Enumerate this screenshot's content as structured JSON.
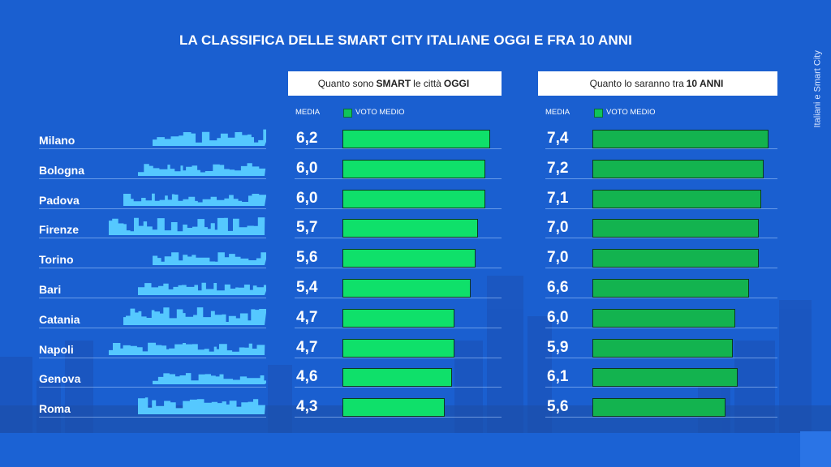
{
  "title": "LA CLASSIFICA DELLE SMART CITY ITALIANE OGGI E FRA 10 ANNI",
  "side_label": "Italiani e Smart City",
  "panels": {
    "today": {
      "pre": "Quanto sono",
      "bold1": "SMART",
      "mid": "le città",
      "bold2": "OGGI"
    },
    "future": {
      "pre": "Quanto lo saranno tra",
      "bold1": "10 ANNI"
    }
  },
  "column_labels": {
    "media": "MEDIA",
    "voto": "VOTO MEDIO"
  },
  "colors": {
    "background": "#1a5fd0",
    "bar_today": "#0fe06a",
    "bar_future": "#13b34f",
    "skyline": "#55c8ff"
  },
  "chart_data": {
    "type": "bar",
    "orientation": "horizontal",
    "categories": [
      "Milano",
      "Bologna",
      "Padova",
      "Firenze",
      "Torino",
      "Bari",
      "Catania",
      "Napoli",
      "Genova",
      "Roma"
    ],
    "series": [
      {
        "name": "Quanto sono SMART le città OGGI",
        "values": [
          6.2,
          6.0,
          6.0,
          5.7,
          5.6,
          5.4,
          4.7,
          4.7,
          4.6,
          4.3
        ],
        "labels": [
          "6,2",
          "6,0",
          "6,0",
          "5,7",
          "5,6",
          "5,4",
          "4,7",
          "4,7",
          "4,6",
          "4,3"
        ]
      },
      {
        "name": "Quanto lo saranno tra 10 ANNI",
        "values": [
          7.4,
          7.2,
          7.1,
          7.0,
          7.0,
          6.6,
          6.0,
          5.9,
          6.1,
          5.6
        ],
        "labels": [
          "7,4",
          "7,2",
          "7,1",
          "7,0",
          "7,0",
          "6,6",
          "6,0",
          "5,9",
          "6,1",
          "5,6"
        ]
      }
    ]
  }
}
